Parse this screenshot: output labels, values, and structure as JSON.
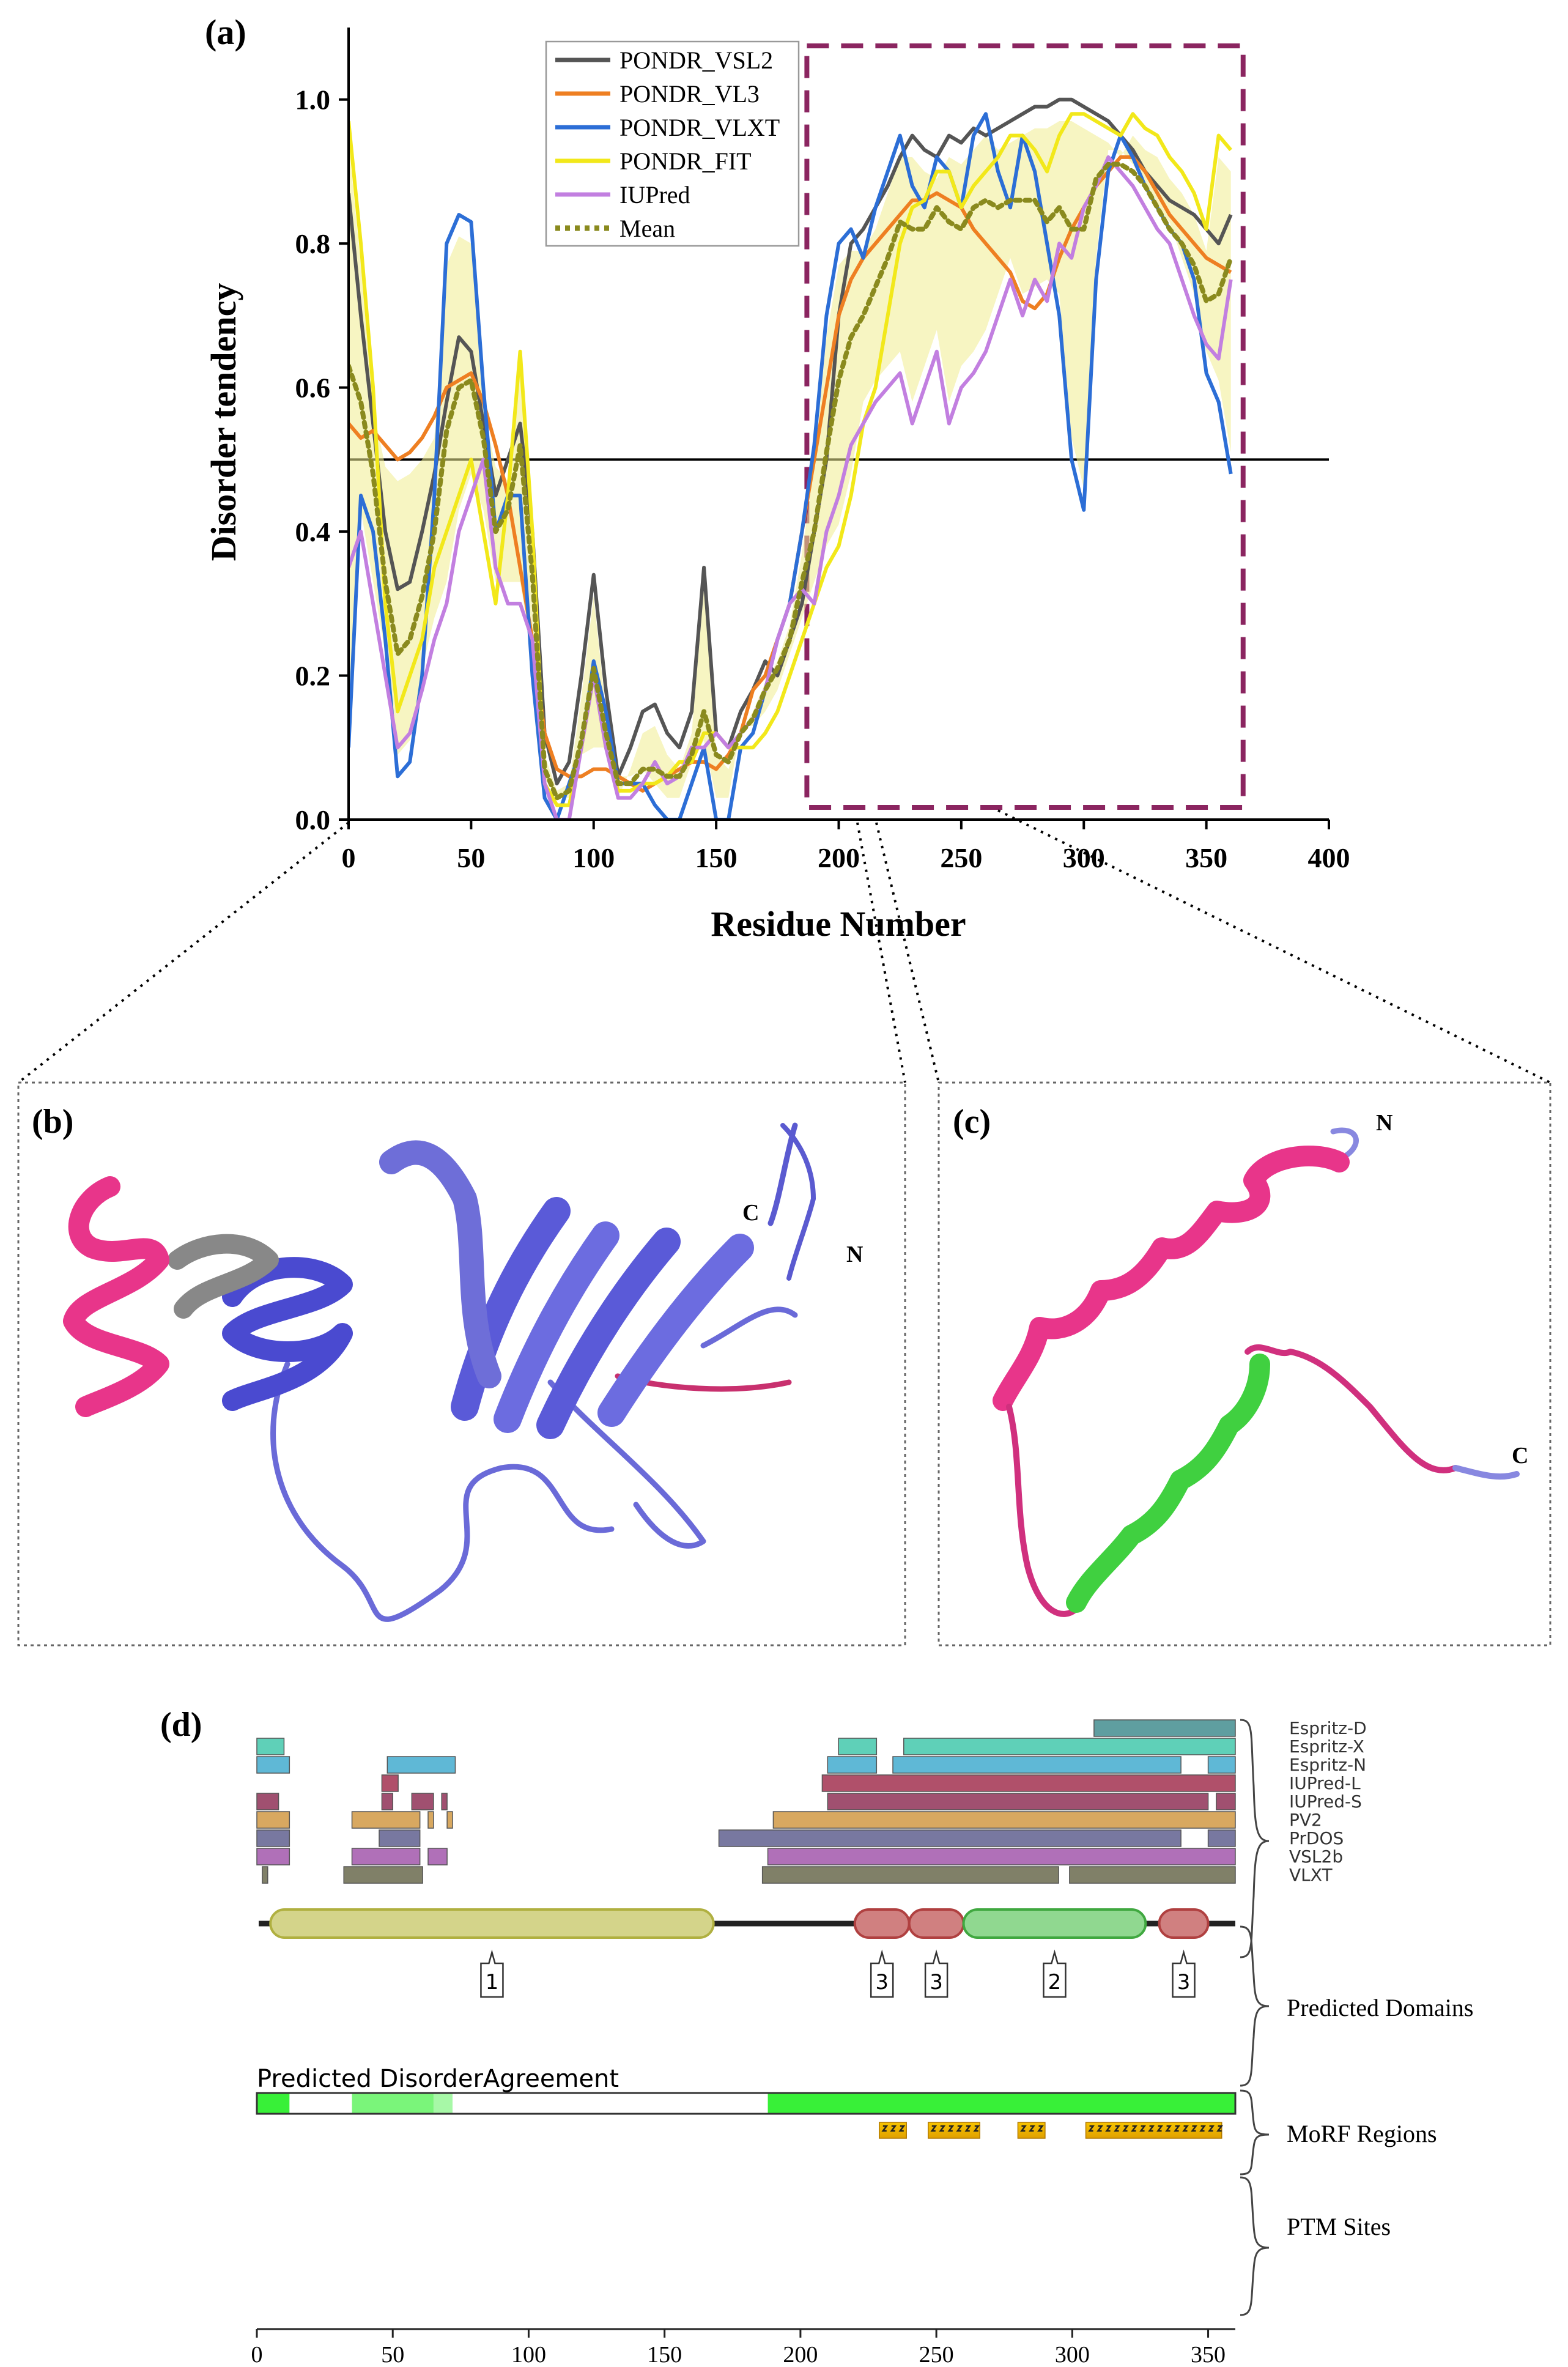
{
  "panel_a": {
    "label": "(a)",
    "chart_data": {
      "type": "line",
      "xlabel": "Residue Number",
      "ylabel": "Disorder tendency",
      "xlim": [
        0,
        400
      ],
      "ylim": [
        0,
        1.1
      ],
      "xticks": [
        "0",
        "50",
        "100",
        "150",
        "200",
        "250",
        "300",
        "350",
        "400"
      ],
      "yticks": [
        "0.0",
        "0.2",
        "0.4",
        "0.6",
        "0.8",
        "1.0"
      ],
      "threshold": 0.5,
      "highlight_box_x": [
        187,
        365
      ],
      "legend_position": "top-center",
      "x": [
        0,
        5,
        10,
        15,
        20,
        25,
        30,
        35,
        40,
        45,
        50,
        55,
        60,
        65,
        70,
        75,
        80,
        85,
        90,
        95,
        100,
        105,
        110,
        115,
        120,
        125,
        130,
        135,
        140,
        145,
        150,
        155,
        160,
        165,
        170,
        175,
        180,
        185,
        190,
        195,
        200,
        205,
        210,
        215,
        220,
        225,
        230,
        235,
        240,
        245,
        250,
        255,
        260,
        265,
        270,
        275,
        280,
        285,
        290,
        295,
        300,
        305,
        310,
        315,
        320,
        325,
        330,
        335,
        340,
        345,
        350,
        355,
        360
      ],
      "series": [
        {
          "name": "PONDR_VSL2",
          "color": "#555555",
          "values": [
            0.87,
            0.7,
            0.55,
            0.4,
            0.32,
            0.33,
            0.4,
            0.48,
            0.58,
            0.67,
            0.65,
            0.55,
            0.45,
            0.5,
            0.55,
            0.4,
            0.12,
            0.05,
            0.08,
            0.2,
            0.34,
            0.18,
            0.06,
            0.1,
            0.15,
            0.16,
            0.12,
            0.1,
            0.15,
            0.35,
            0.12,
            0.1,
            0.15,
            0.18,
            0.22,
            0.2,
            0.25,
            0.3,
            0.4,
            0.5,
            0.7,
            0.8,
            0.82,
            0.85,
            0.88,
            0.92,
            0.95,
            0.93,
            0.92,
            0.95,
            0.94,
            0.96,
            0.95,
            0.96,
            0.97,
            0.98,
            0.99,
            0.99,
            1.0,
            1.0,
            0.99,
            0.98,
            0.97,
            0.95,
            0.93,
            0.9,
            0.88,
            0.86,
            0.85,
            0.84,
            0.82,
            0.8,
            0.84
          ]
        },
        {
          "name": "PONDR_VL3",
          "color": "#ee7f22",
          "values": [
            0.55,
            0.53,
            0.54,
            0.52,
            0.5,
            0.51,
            0.53,
            0.56,
            0.6,
            0.61,
            0.62,
            0.58,
            0.52,
            0.45,
            0.35,
            0.25,
            0.12,
            0.07,
            0.06,
            0.06,
            0.07,
            0.07,
            0.06,
            0.05,
            0.04,
            0.05,
            0.06,
            0.07,
            0.08,
            0.08,
            0.07,
            0.09,
            0.12,
            0.18,
            0.2,
            0.25,
            0.3,
            0.4,
            0.5,
            0.6,
            0.7,
            0.75,
            0.78,
            0.8,
            0.82,
            0.84,
            0.86,
            0.86,
            0.87,
            0.86,
            0.85,
            0.82,
            0.8,
            0.78,
            0.76,
            0.72,
            0.71,
            0.73,
            0.78,
            0.82,
            0.85,
            0.88,
            0.9,
            0.92,
            0.92,
            0.9,
            0.87,
            0.84,
            0.82,
            0.8,
            0.78,
            0.77,
            0.76
          ]
        },
        {
          "name": "PONDR_VLXT",
          "color": "#2c6ed6",
          "values": [
            0.1,
            0.45,
            0.4,
            0.25,
            0.06,
            0.08,
            0.2,
            0.45,
            0.8,
            0.84,
            0.83,
            0.6,
            0.4,
            0.45,
            0.45,
            0.2,
            0.03,
            0.0,
            0.05,
            0.1,
            0.22,
            0.15,
            0.05,
            0.05,
            0.05,
            0.02,
            0.0,
            0.0,
            0.05,
            0.1,
            0.0,
            0.0,
            0.1,
            0.12,
            0.18,
            0.25,
            0.3,
            0.4,
            0.52,
            0.7,
            0.8,
            0.82,
            0.78,
            0.85,
            0.9,
            0.95,
            0.88,
            0.85,
            0.92,
            0.9,
            0.85,
            0.95,
            0.98,
            0.9,
            0.85,
            0.95,
            0.9,
            0.8,
            0.7,
            0.5,
            0.43,
            0.75,
            0.9,
            0.95,
            0.92,
            0.88,
            0.85,
            0.82,
            0.8,
            0.75,
            0.62,
            0.58,
            0.48
          ]
        },
        {
          "name": "PONDR_FIT",
          "color": "#f2e81a",
          "values": [
            0.97,
            0.8,
            0.6,
            0.3,
            0.15,
            0.2,
            0.25,
            0.35,
            0.4,
            0.45,
            0.5,
            0.4,
            0.3,
            0.45,
            0.65,
            0.4,
            0.05,
            0.02,
            0.02,
            0.1,
            0.2,
            0.1,
            0.04,
            0.04,
            0.05,
            0.05,
            0.06,
            0.08,
            0.08,
            0.12,
            0.12,
            0.1,
            0.1,
            0.1,
            0.12,
            0.15,
            0.2,
            0.25,
            0.3,
            0.35,
            0.38,
            0.45,
            0.55,
            0.6,
            0.7,
            0.8,
            0.85,
            0.86,
            0.9,
            0.9,
            0.85,
            0.88,
            0.9,
            0.92,
            0.95,
            0.95,
            0.93,
            0.9,
            0.95,
            0.98,
            0.98,
            0.97,
            0.96,
            0.95,
            0.98,
            0.96,
            0.95,
            0.92,
            0.9,
            0.87,
            0.82,
            0.95,
            0.93
          ]
        },
        {
          "name": "IUPred",
          "color": "#c27fe0",
          "values": [
            0.35,
            0.4,
            0.3,
            0.2,
            0.1,
            0.12,
            0.18,
            0.25,
            0.3,
            0.4,
            0.45,
            0.5,
            0.35,
            0.3,
            0.3,
            0.25,
            0.05,
            0.0,
            0.0,
            0.1,
            0.2,
            0.1,
            0.03,
            0.03,
            0.05,
            0.08,
            0.05,
            0.06,
            0.1,
            0.1,
            0.12,
            0.1,
            0.12,
            0.14,
            0.18,
            0.25,
            0.3,
            0.32,
            0.3,
            0.4,
            0.45,
            0.52,
            0.55,
            0.58,
            0.6,
            0.62,
            0.55,
            0.6,
            0.65,
            0.55,
            0.6,
            0.62,
            0.65,
            0.7,
            0.75,
            0.7,
            0.75,
            0.72,
            0.8,
            0.78,
            0.85,
            0.88,
            0.92,
            0.9,
            0.88,
            0.85,
            0.82,
            0.8,
            0.75,
            0.7,
            0.66,
            0.64,
            0.75
          ]
        },
        {
          "name": "Mean",
          "color": "#8a8a1e",
          "dashed": true,
          "values": [
            0.63,
            0.58,
            0.48,
            0.33,
            0.23,
            0.25,
            0.31,
            0.4,
            0.54,
            0.6,
            0.61,
            0.53,
            0.4,
            0.43,
            0.52,
            0.34,
            0.07,
            0.03,
            0.04,
            0.11,
            0.21,
            0.12,
            0.05,
            0.05,
            0.07,
            0.07,
            0.06,
            0.06,
            0.09,
            0.15,
            0.09,
            0.08,
            0.12,
            0.14,
            0.18,
            0.21,
            0.25,
            0.33,
            0.4,
            0.51,
            0.61,
            0.67,
            0.7,
            0.74,
            0.78,
            0.83,
            0.82,
            0.82,
            0.85,
            0.83,
            0.82,
            0.85,
            0.86,
            0.85,
            0.86,
            0.86,
            0.86,
            0.83,
            0.85,
            0.82,
            0.82,
            0.89,
            0.91,
            0.91,
            0.9,
            0.88,
            0.85,
            0.82,
            0.8,
            0.77,
            0.72,
            0.73,
            0.78
          ]
        }
      ]
    }
  },
  "panel_b": {
    "label": "(b)",
    "c_label": "C",
    "n_label": "N"
  },
  "panel_c": {
    "label": "(c)",
    "n_label": "N",
    "c_label": "C"
  },
  "panel_d": {
    "label": "(d)",
    "chart_data": {
      "type": "bar",
      "x_range": [
        0,
        360
      ],
      "xticks": [
        "0",
        "50",
        "100",
        "150",
        "200",
        "250",
        "300",
        "350"
      ],
      "tracks": [
        {
          "name": "Espritz-D",
          "color": "#5f9ea0",
          "segments": [
            [
              308,
              360
            ]
          ]
        },
        {
          "name": "Espritz-X",
          "color": "#5fd0b8",
          "segments": [
            [
              0,
              10
            ],
            [
              214,
              228
            ],
            [
              238,
              360
            ]
          ]
        },
        {
          "name": "Espritz-N",
          "color": "#5fb8d6",
          "segments": [
            [
              0,
              12
            ],
            [
              48,
              73
            ],
            [
              210,
              228
            ],
            [
              234,
              340
            ],
            [
              350,
              360
            ]
          ]
        },
        {
          "name": "IUPred-L",
          "color": "#b0506a",
          "segments": [
            [
              46,
              52
            ],
            [
              208,
              360
            ]
          ]
        },
        {
          "name": "IUPred-S",
          "color": "#a05070",
          "segments": [
            [
              0,
              8
            ],
            [
              46,
              50
            ],
            [
              57,
              65
            ],
            [
              68,
              70
            ],
            [
              210,
              350
            ],
            [
              353,
              360
            ]
          ]
        },
        {
          "name": "PV2",
          "color": "#d8a860",
          "segments": [
            [
              0,
              12
            ],
            [
              35,
              60
            ],
            [
              63,
              65
            ],
            [
              70,
              72
            ],
            [
              190,
              360
            ]
          ]
        },
        {
          "name": "PrDOS",
          "color": "#7878a0",
          "segments": [
            [
              0,
              12
            ],
            [
              45,
              60
            ],
            [
              170,
              340
            ],
            [
              350,
              360
            ]
          ]
        },
        {
          "name": "VSL2b",
          "color": "#b070b8",
          "segments": [
            [
              0,
              12
            ],
            [
              35,
              60
            ],
            [
              63,
              70
            ],
            [
              188,
              360
            ]
          ]
        },
        {
          "name": "VLXT",
          "color": "#808068",
          "segments": [
            [
              2,
              4
            ],
            [
              32,
              61
            ],
            [
              186,
              295
            ],
            [
              299,
              360
            ]
          ]
        }
      ],
      "tracks_bracket_label": "",
      "domains_label": "Predicted Domains",
      "domains": [
        {
          "id": "1",
          "start": 5,
          "end": 168,
          "color": "#d4d48a"
        },
        {
          "id": "3",
          "start": 220,
          "end": 240,
          "color": "#d08080"
        },
        {
          "id": "3",
          "start": 240,
          "end": 260,
          "color": "#d08080"
        },
        {
          "id": "2",
          "start": 260,
          "end": 327,
          "color": "#90d890"
        },
        {
          "id": "3",
          "start": 332,
          "end": 350,
          "color": "#d08080"
        }
      ],
      "agreement_label": "Predicted DisorderAgreement",
      "agreement_segments": [
        [
          0,
          12,
          0.9
        ],
        [
          35,
          65,
          0.6
        ],
        [
          65,
          72,
          0.4
        ],
        [
          188,
          360,
          0.9
        ]
      ],
      "morf_label": "MoRF Regions",
      "morf_segments": [
        [
          229,
          239
        ],
        [
          247,
          266
        ],
        [
          280,
          290
        ],
        [
          305,
          355
        ]
      ],
      "ptm_label": "PTM Sites"
    }
  }
}
